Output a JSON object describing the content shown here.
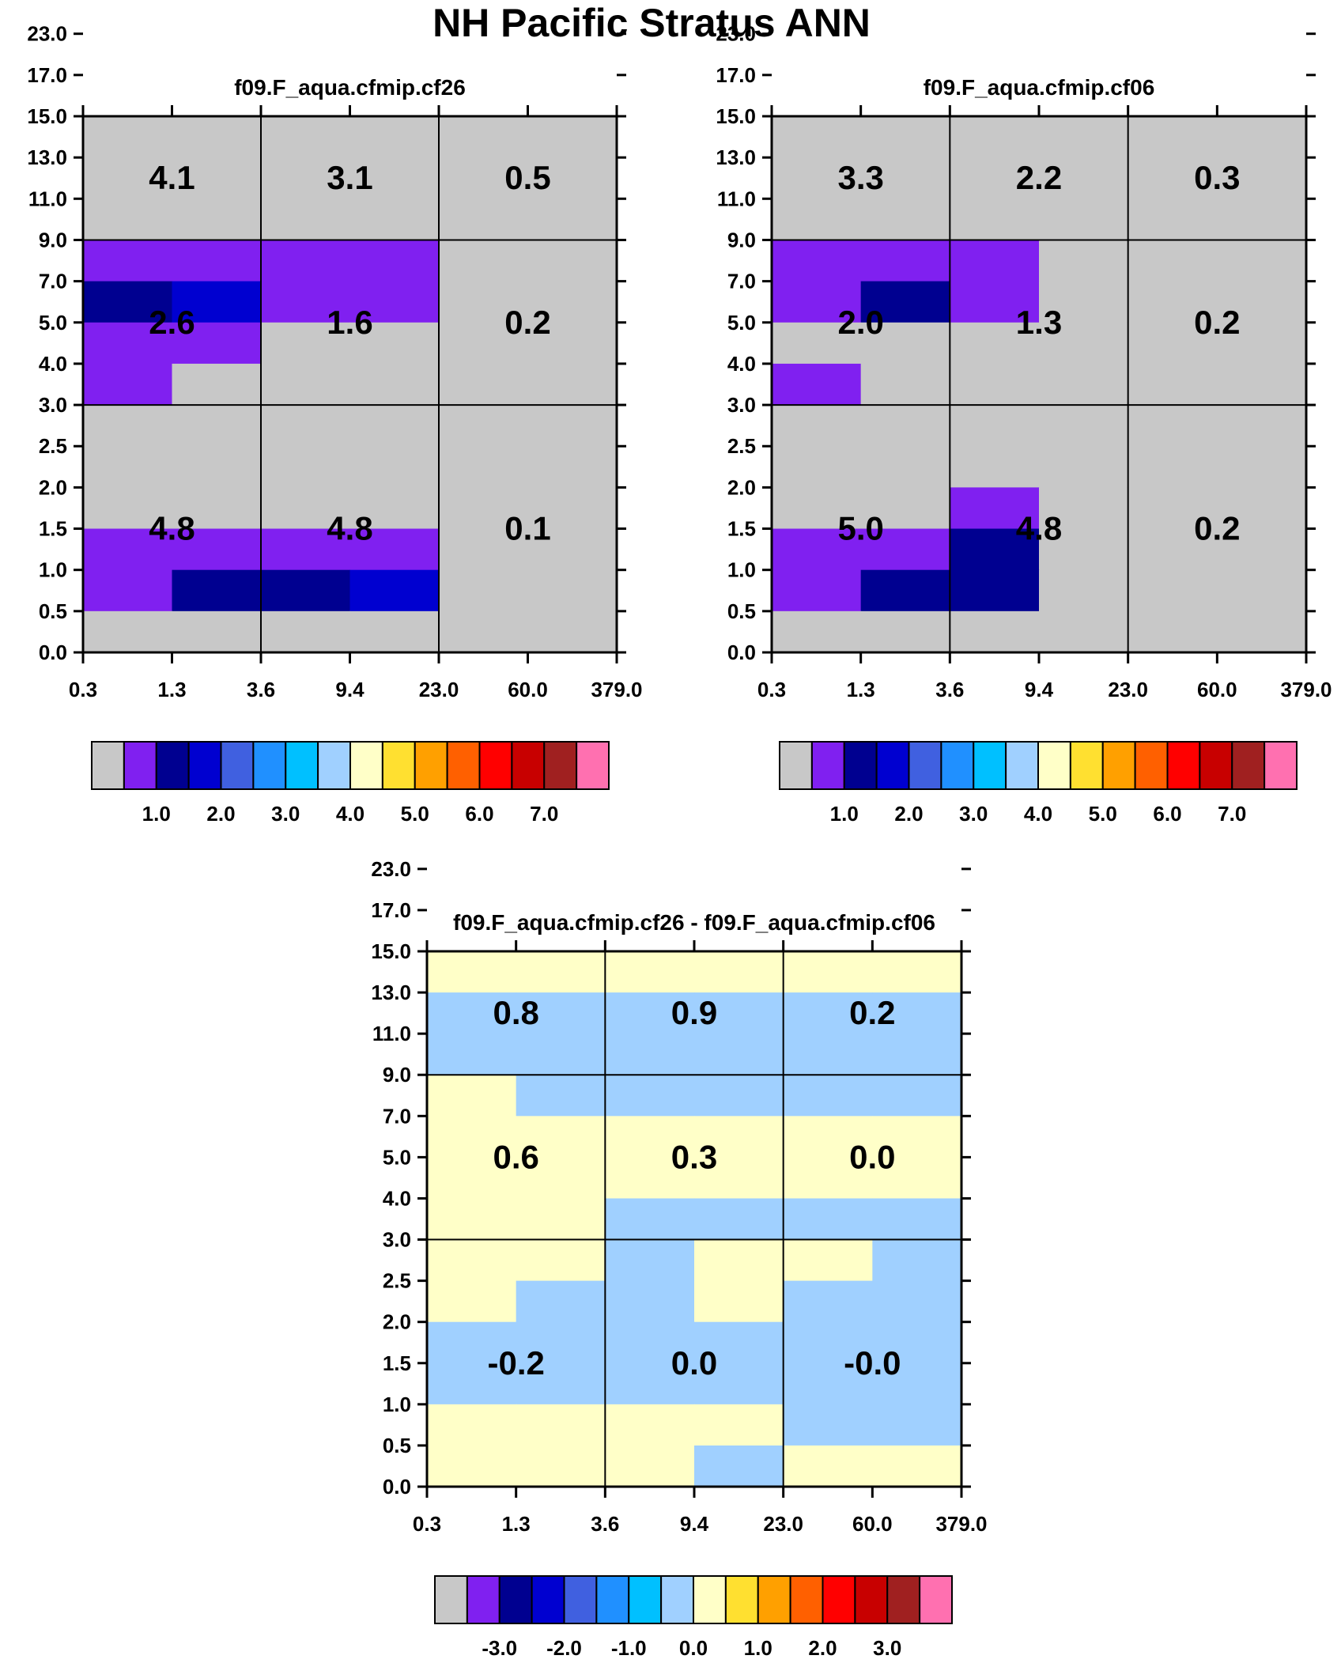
{
  "chart_data": {
    "type": "heatmap",
    "title": "NH Pacific Stratus ANN",
    "xlabel": "",
    "ylabel": "",
    "x_ticks": [
      "0.3",
      "1.3",
      "3.6",
      "9.4",
      "23.0",
      "60.0",
      "379.0"
    ],
    "y_ticks": [
      "0.0",
      "0.5",
      "1.0",
      "1.5",
      "2.0",
      "2.5",
      "3.0",
      "4.0",
      "5.0",
      "7.0",
      "9.0",
      "11.0",
      "13.0",
      "15.0",
      "17.0",
      "23.0"
    ],
    "panels": [
      {
        "title": "f09.F_aqua.cfmip.cf26",
        "block_labels": [
          [
            "4.1",
            "3.1",
            "0.5"
          ],
          [
            "2.6",
            "1.6",
            "0.2"
          ],
          [
            "4.8",
            "4.8",
            "0.1"
          ]
        ],
        "grid": [
          [
            0,
            0,
            0,
            0,
            0,
            0
          ],
          [
            0,
            0,
            0,
            0,
            0,
            0
          ],
          [
            0,
            0,
            0,
            0,
            0,
            0
          ],
          [
            1,
            1,
            1,
            1,
            0,
            0
          ],
          [
            2,
            3,
            1,
            1,
            0,
            0
          ],
          [
            1,
            1,
            0,
            0,
            0,
            0
          ],
          [
            1,
            0,
            0,
            0,
            0,
            0
          ],
          [
            0,
            0,
            0,
            0,
            0,
            0
          ],
          [
            0,
            0,
            0,
            0,
            0,
            0
          ],
          [
            0,
            0,
            0,
            0,
            0,
            0
          ],
          [
            1,
            1,
            1,
            1,
            0,
            0
          ],
          [
            1,
            2,
            2,
            3,
            0,
            0
          ],
          [
            0,
            0,
            0,
            0,
            0,
            0
          ]
        ],
        "colorbar_labels": [
          "1.0",
          "2.0",
          "3.0",
          "4.0",
          "5.0",
          "6.0",
          "7.0"
        ]
      },
      {
        "title": "f09.F_aqua.cfmip.cf06",
        "block_labels": [
          [
            "3.3",
            "2.2",
            "0.3"
          ],
          [
            "2.0",
            "1.3",
            "0.2"
          ],
          [
            "5.0",
            "4.8",
            "0.2"
          ]
        ],
        "grid": [
          [
            0,
            0,
            0,
            0,
            0,
            0
          ],
          [
            0,
            0,
            0,
            0,
            0,
            0
          ],
          [
            0,
            0,
            0,
            0,
            0,
            0
          ],
          [
            1,
            1,
            1,
            0,
            0,
            0
          ],
          [
            1,
            2,
            1,
            0,
            0,
            0
          ],
          [
            0,
            0,
            0,
            0,
            0,
            0
          ],
          [
            1,
            0,
            0,
            0,
            0,
            0
          ],
          [
            0,
            0,
            0,
            0,
            0,
            0
          ],
          [
            0,
            0,
            0,
            0,
            0,
            0
          ],
          [
            0,
            0,
            1,
            0,
            0,
            0
          ],
          [
            1,
            1,
            2,
            0,
            0,
            0
          ],
          [
            1,
            2,
            2,
            0,
            0,
            0
          ],
          [
            0,
            0,
            0,
            0,
            0,
            0
          ]
        ],
        "colorbar_labels": [
          "1.0",
          "2.0",
          "3.0",
          "4.0",
          "5.0",
          "6.0",
          "7.0"
        ]
      },
      {
        "title": "f09.F_aqua.cfmip.cf26 - f09.F_aqua.cfmip.cf06",
        "block_labels": [
          [
            "0.8",
            "0.9",
            "0.2"
          ],
          [
            "0.6",
            "0.3",
            "0.0"
          ],
          [
            "-0.2",
            "0.0",
            "-0.0"
          ]
        ],
        "grid": [
          [
            8,
            8,
            8,
            8,
            8,
            8
          ],
          [
            7,
            7,
            7,
            7,
            7,
            7
          ],
          [
            7,
            7,
            7,
            7,
            7,
            7
          ],
          [
            8,
            7,
            7,
            7,
            7,
            7
          ],
          [
            8,
            8,
            8,
            8,
            8,
            8
          ],
          [
            8,
            8,
            8,
            8,
            8,
            8
          ],
          [
            8,
            8,
            7,
            7,
            7,
            7
          ],
          [
            8,
            8,
            7,
            8,
            8,
            7
          ],
          [
            8,
            7,
            7,
            8,
            7,
            7
          ],
          [
            7,
            7,
            7,
            7,
            7,
            7
          ],
          [
            7,
            7,
            7,
            7,
            7,
            7
          ],
          [
            8,
            8,
            8,
            8,
            7,
            7
          ],
          [
            8,
            8,
            8,
            7,
            8,
            8
          ]
        ],
        "colorbar_labels": [
          "-3.0",
          "-2.0",
          "-1.0",
          "0.0",
          "1.0",
          "2.0",
          "3.0"
        ]
      }
    ]
  },
  "colormap": [
    "#c8c8c8",
    "#8020f0",
    "#000090",
    "#0000d0",
    "#4060e0",
    "#2090ff",
    "#00c0ff",
    "#a0d0ff",
    "#ffffc8",
    "#ffe030",
    "#ffa000",
    "#ff6000",
    "#ff0000",
    "#c80000",
    "#a02020",
    "#ff70b0"
  ]
}
